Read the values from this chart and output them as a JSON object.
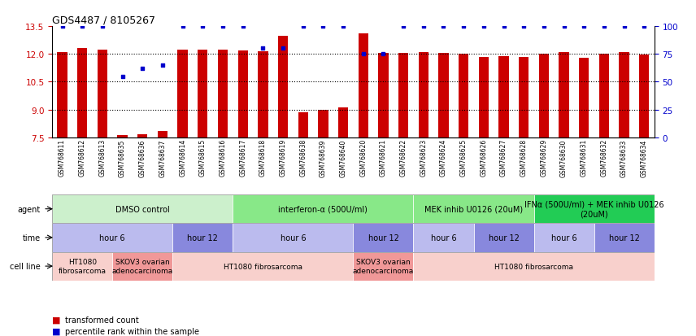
{
  "title": "GDS4487 / 8105267",
  "samples": [
    "GSM768611",
    "GSM768612",
    "GSM768613",
    "GSM768635",
    "GSM768636",
    "GSM768637",
    "GSM768614",
    "GSM768615",
    "GSM768616",
    "GSM768617",
    "GSM768618",
    "GSM768619",
    "GSM768638",
    "GSM768639",
    "GSM768640",
    "GSM768620",
    "GSM768621",
    "GSM768622",
    "GSM768623",
    "GSM768624",
    "GSM768625",
    "GSM768626",
    "GSM768627",
    "GSM768628",
    "GSM768629",
    "GSM768630",
    "GSM768631",
    "GSM768632",
    "GSM768633",
    "GSM768634"
  ],
  "bar_values": [
    12.1,
    12.3,
    12.25,
    7.6,
    7.65,
    7.85,
    12.25,
    12.25,
    12.25,
    12.2,
    12.15,
    13.0,
    8.85,
    9.0,
    9.1,
    13.1,
    12.05,
    12.05,
    12.1,
    12.05,
    12.0,
    11.85,
    11.9,
    11.85,
    12.0,
    12.1,
    11.8,
    12.0,
    12.1,
    11.95
  ],
  "percentile_values": [
    100,
    100,
    100,
    55,
    62,
    65,
    100,
    100,
    100,
    100,
    80,
    80,
    100,
    100,
    100,
    75,
    75,
    100,
    100,
    100,
    100,
    100,
    100,
    100,
    100,
    100,
    100,
    100,
    100,
    100
  ],
  "bar_color": "#cc0000",
  "dot_color": "#0000cc",
  "ylim": [
    7.5,
    13.5
  ],
  "yticks_left": [
    7.5,
    9.0,
    10.5,
    12.0,
    13.5
  ],
  "yticks_right": [
    0,
    25,
    50,
    75,
    100
  ],
  "right_color": "#0000cc",
  "left_color": "#cc0000",
  "agent_row": [
    {
      "label": "DMSO control",
      "start": 0,
      "end": 9,
      "color": "#ccf0cc"
    },
    {
      "label": "interferon-α (500U/ml)",
      "start": 9,
      "end": 18,
      "color": "#88e888"
    },
    {
      "label": "MEK inhib U0126 (20uM)",
      "start": 18,
      "end": 24,
      "color": "#88e888"
    },
    {
      "label": "IFNα (500U/ml) + MEK inhib U0126\n(20uM)",
      "start": 24,
      "end": 30,
      "color": "#22cc55"
    }
  ],
  "time_row": [
    {
      "label": "hour 6",
      "start": 0,
      "end": 6,
      "color": "#bbbbee"
    },
    {
      "label": "hour 12",
      "start": 6,
      "end": 9,
      "color": "#8888dd"
    },
    {
      "label": "hour 6",
      "start": 9,
      "end": 15,
      "color": "#bbbbee"
    },
    {
      "label": "hour 12",
      "start": 15,
      "end": 18,
      "color": "#8888dd"
    },
    {
      "label": "hour 6",
      "start": 18,
      "end": 21,
      "color": "#bbbbee"
    },
    {
      "label": "hour 12",
      "start": 21,
      "end": 24,
      "color": "#8888dd"
    },
    {
      "label": "hour 6",
      "start": 24,
      "end": 27,
      "color": "#bbbbee"
    },
    {
      "label": "hour 12",
      "start": 27,
      "end": 30,
      "color": "#8888dd"
    }
  ],
  "cellline_row": [
    {
      "label": "HT1080\nfibrosarcoma",
      "start": 0,
      "end": 3,
      "color": "#f8d0cc"
    },
    {
      "label": "SKOV3 ovarian\nadenocarcinoma",
      "start": 3,
      "end": 6,
      "color": "#f09898"
    },
    {
      "label": "HT1080 fibrosarcoma",
      "start": 6,
      "end": 15,
      "color": "#f8d0cc"
    },
    {
      "label": "SKOV3 ovarian\nadenocarcinoma",
      "start": 15,
      "end": 18,
      "color": "#f09898"
    },
    {
      "label": "HT1080 fibrosarcoma",
      "start": 18,
      "end": 30,
      "color": "#f8d0cc"
    }
  ],
  "legend_red": "transformed count",
  "legend_blue": "percentile rank within the sample"
}
